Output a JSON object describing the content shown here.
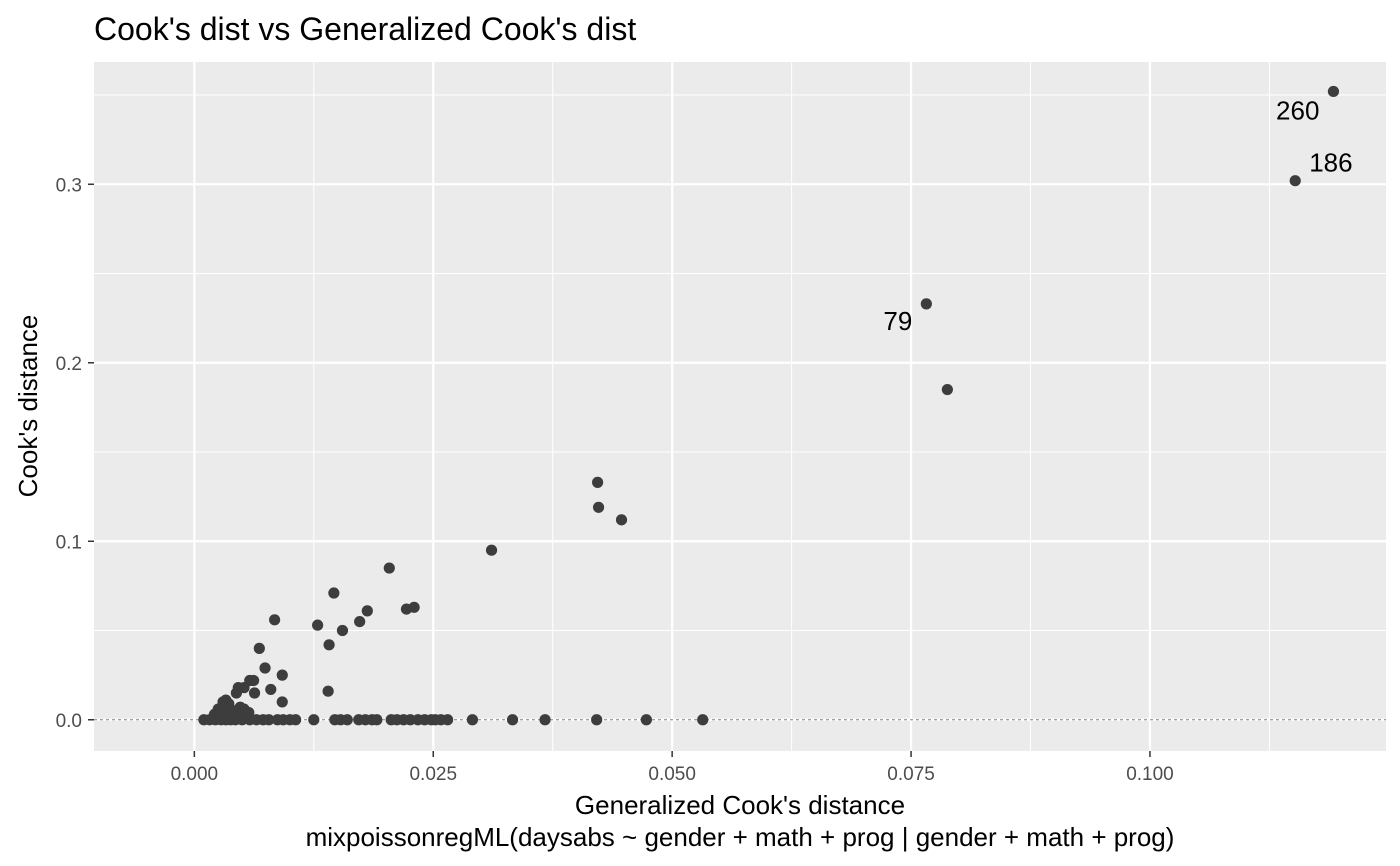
{
  "chart_data": {
    "type": "scatter",
    "title": "Cook's dist vs Generalized Cook's dist",
    "xlabel": "Generalized Cook's distance",
    "subtitle_x": "mixpoissonregML(daysabs ~ gender + math + prog | gender + math + prog)",
    "ylabel": "Cook's distance",
    "xlim": [
      -0.0105,
      0.1247
    ],
    "ylim": [
      -0.0175,
      0.3685
    ],
    "x_ticks": [
      0.0,
      0.025,
      0.05,
      0.075,
      0.1
    ],
    "x_tick_labels": [
      "0.000",
      "0.025",
      "0.050",
      "0.075",
      "0.100"
    ],
    "y_ticks": [
      0.0,
      0.1,
      0.2,
      0.3
    ],
    "y_tick_labels": [
      "0.0",
      "0.1",
      "0.2",
      "0.3"
    ],
    "reference_line_y": 0,
    "grid": true,
    "colors": {
      "panel": "#ebebeb",
      "grid": "#ffffff",
      "point": "#3d3d3d",
      "reference_line": "#808080"
    },
    "labeled_points": [
      {
        "id": "260",
        "x": 0.1192,
        "y": 0.352
      },
      {
        "id": "186",
        "x": 0.1152,
        "y": 0.302
      },
      {
        "id": "79",
        "x": 0.0766,
        "y": 0.233
      }
    ],
    "points": [
      [
        0.1192,
        0.352
      ],
      [
        0.1152,
        0.302
      ],
      [
        0.0766,
        0.233
      ],
      [
        0.0788,
        0.185
      ],
      [
        0.0422,
        0.133
      ],
      [
        0.0423,
        0.119
      ],
      [
        0.0447,
        0.112
      ],
      [
        0.0311,
        0.095
      ],
      [
        0.0204,
        0.085
      ],
      [
        0.0146,
        0.071
      ],
      [
        0.023,
        0.063
      ],
      [
        0.0222,
        0.062
      ],
      [
        0.0181,
        0.061
      ],
      [
        0.0084,
        0.056
      ],
      [
        0.0173,
        0.055
      ],
      [
        0.0129,
        0.053
      ],
      [
        0.0155,
        0.05
      ],
      [
        0.0141,
        0.042
      ],
      [
        0.0068,
        0.04
      ],
      [
        0.0074,
        0.029
      ],
      [
        0.0092,
        0.025
      ],
      [
        0.0058,
        0.022
      ],
      [
        0.0062,
        0.022
      ],
      [
        0.0052,
        0.018
      ],
      [
        0.0046,
        0.018
      ],
      [
        0.008,
        0.017
      ],
      [
        0.014,
        0.016
      ],
      [
        0.0044,
        0.015
      ],
      [
        0.0063,
        0.015
      ],
      [
        0.0092,
        0.01
      ],
      [
        0.003,
        0.01
      ],
      [
        0.0033,
        0.011
      ],
      [
        0.0036,
        0.009
      ],
      [
        0.0029,
        0.007
      ],
      [
        0.0048,
        0.007
      ],
      [
        0.0025,
        0.006
      ],
      [
        0.0041,
        0.005
      ],
      [
        0.0052,
        0.006
      ],
      [
        0.0057,
        0.004
      ],
      [
        0.0021,
        0.003
      ],
      [
        0.0035,
        0.003
      ],
      [
        0.0045,
        0.002
      ],
      [
        0.0026,
        0.002
      ],
      [
        0.0049,
        0.003
      ],
      [
        0.001,
        0.0
      ],
      [
        0.0016,
        0.0
      ],
      [
        0.0022,
        0.0
      ],
      [
        0.0028,
        0.0
      ],
      [
        0.0033,
        0.0
      ],
      [
        0.0038,
        0.0
      ],
      [
        0.0043,
        0.0
      ],
      [
        0.005,
        0.0
      ],
      [
        0.0058,
        0.0
      ],
      [
        0.0065,
        0.0
      ],
      [
        0.0072,
        0.0
      ],
      [
        0.0078,
        0.0
      ],
      [
        0.0087,
        0.0
      ],
      [
        0.0093,
        0.0
      ],
      [
        0.01,
        0.0
      ],
      [
        0.0106,
        0.0
      ],
      [
        0.0125,
        0.0
      ],
      [
        0.0147,
        0.0
      ],
      [
        0.0153,
        0.0
      ],
      [
        0.016,
        0.0
      ],
      [
        0.0172,
        0.0
      ],
      [
        0.0179,
        0.0
      ],
      [
        0.0186,
        0.0
      ],
      [
        0.0191,
        0.0
      ],
      [
        0.0206,
        0.0
      ],
      [
        0.0212,
        0.0
      ],
      [
        0.0219,
        0.0
      ],
      [
        0.0226,
        0.0
      ],
      [
        0.0234,
        0.0
      ],
      [
        0.0241,
        0.0
      ],
      [
        0.0248,
        0.0
      ],
      [
        0.0252,
        0.0
      ],
      [
        0.0258,
        0.0
      ],
      [
        0.0265,
        0.0
      ],
      [
        0.0291,
        0.0
      ],
      [
        0.0333,
        0.0
      ],
      [
        0.0367,
        0.0
      ],
      [
        0.0421,
        0.0
      ],
      [
        0.0473,
        0.0
      ],
      [
        0.0532,
        0.0
      ]
    ]
  }
}
